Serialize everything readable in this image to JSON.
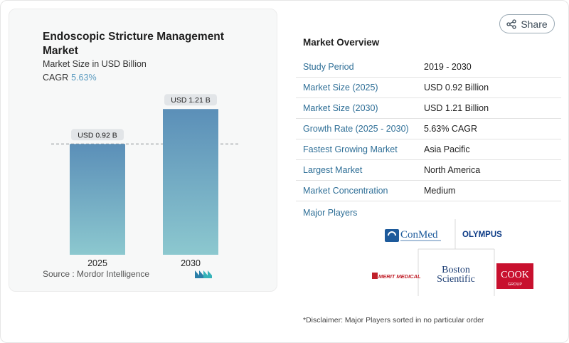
{
  "left_card": {
    "title": "Endoscopic Stricture Management Market",
    "subtitle": "Market Size in USD Billion",
    "cagr_label": "CAGR",
    "cagr_value": "5.63%",
    "source": "Source :  Mordor Intelligence"
  },
  "chart_data": {
    "type": "bar",
    "categories": [
      "2025",
      "2030"
    ],
    "values": [
      0.92,
      1.21
    ],
    "data_labels": [
      "USD 0.92 B",
      "USD 1.21 B"
    ],
    "title": "Endoscopic Stricture Management Market",
    "subtitle": "Market Size in USD Billion",
    "xlabel": "",
    "ylabel": "",
    "ylim": [
      0,
      1.3
    ],
    "reference_line": 0.92,
    "grid": false,
    "colors": {
      "bar_top": "#5b8fb8",
      "bar_bottom": "#8cc8cf"
    }
  },
  "share": {
    "label": "Share",
    "icon": "share-icon"
  },
  "overview": {
    "title": "Market Overview",
    "rows": [
      {
        "label": "Study Period",
        "value": "2019 - 2030"
      },
      {
        "label": "Market Size (2025)",
        "value": "USD 0.92 Billion"
      },
      {
        "label": "Market Size (2030)",
        "value": "USD 1.21 Billion"
      },
      {
        "label": "Growth Rate (2025 - 2030)",
        "value": "5.63% CAGR"
      },
      {
        "label": "Fastest Growing Market",
        "value": "Asia Pacific"
      },
      {
        "label": "Largest Market",
        "value": "North America"
      },
      {
        "label": "Market Concentration",
        "value": "Medium"
      }
    ],
    "players_label": "Major Players",
    "players": [
      "ConMed",
      "OLYMPUS",
      "MERIT MEDICAL",
      "Boston Scientific",
      "COOK"
    ]
  },
  "disclaimer": "*Disclaimer: Major Players sorted in no particular order"
}
